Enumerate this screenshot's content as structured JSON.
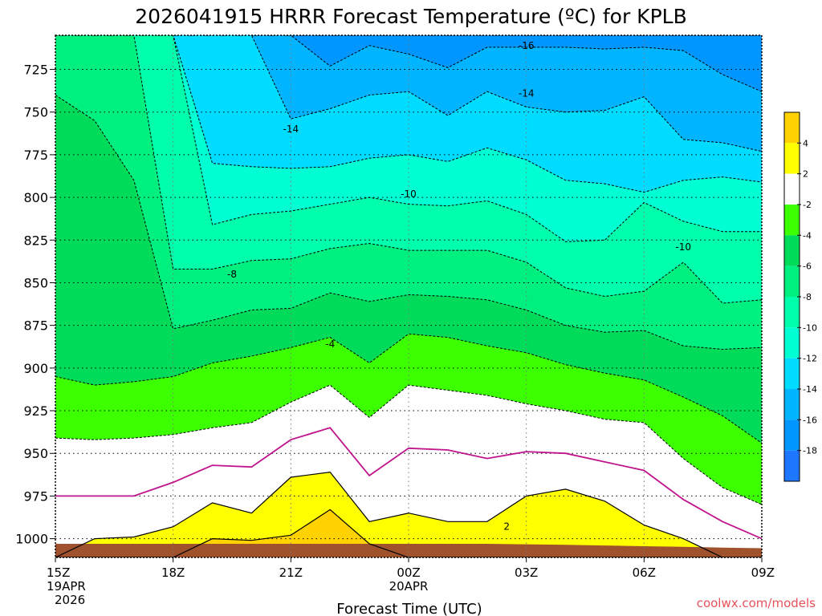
{
  "title": "2026041915 HRRR Forecast Temperature (ºC) for KPLB",
  "watermark": "coolwx.com/models",
  "chart_data": {
    "type": "contour-area",
    "title": "2026041915 HRRR Forecast Temperature (ºC) for KPLB",
    "xlabel": "Forecast Time (UTC)",
    "ylabel": "",
    "x_hours": [
      15,
      16,
      17,
      18,
      19,
      20,
      21,
      22,
      23,
      24,
      25,
      26,
      27,
      28,
      29,
      30,
      31,
      32,
      33
    ],
    "x_ticks": [
      {
        "hour": 15,
        "label": "15Z",
        "sub1": "19APR",
        "sub2": "2026"
      },
      {
        "hour": 18,
        "label": "18Z",
        "sub1": "",
        "sub2": ""
      },
      {
        "hour": 21,
        "label": "21Z",
        "sub1": "",
        "sub2": ""
      },
      {
        "hour": 24,
        "label": "00Z",
        "sub1": "20APR",
        "sub2": ""
      },
      {
        "hour": 27,
        "label": "03Z",
        "sub1": "",
        "sub2": ""
      },
      {
        "hour": 30,
        "label": "06Z",
        "sub1": "",
        "sub2": ""
      },
      {
        "hour": 33,
        "label": "09Z",
        "sub1": "",
        "sub2": ""
      }
    ],
    "y_ticks": [
      725,
      750,
      775,
      800,
      825,
      850,
      875,
      900,
      925,
      950,
      975,
      1000
    ],
    "y_range": [
      705,
      1011
    ],
    "levels": [
      -18,
      -16,
      -14,
      -12,
      -10,
      -8,
      -6,
      -4,
      -2,
      2,
      4
    ],
    "colors": [
      "#1e78ff",
      "#0096ff",
      "#00b4ff",
      "#00dcff",
      "#00ffd2",
      "#00ffaa",
      "#00f080",
      "#00dc5a",
      "#3cff00",
      "#ffffff",
      "#ffff00",
      "#ffd200"
    ],
    "colorbar_labels": [
      "4",
      "2",
      "-2",
      "-4",
      "-6",
      "-8",
      "-10",
      "-12",
      "-14",
      "-16",
      "-18"
    ],
    "ground_pressure": [
      1003,
      1003,
      1003,
      1003,
      1003,
      1003,
      1003,
      1003,
      1003,
      1003,
      1003,
      1003,
      1003.3,
      1003.6,
      1004,
      1004.4,
      1004.8,
      1005.2,
      1005.6
    ],
    "isotherms": [
      {
        "t": -18,
        "p": [
          705,
          705,
          705,
          705,
          705,
          705,
          705,
          705,
          705,
          705,
          705,
          705,
          705,
          705,
          705,
          705,
          705,
          705,
          705
        ]
      },
      {
        "t": -16,
        "p": [
          705,
          705,
          705,
          705,
          705,
          705,
          705,
          723,
          711,
          716,
          724,
          712,
          712,
          712,
          713,
          712,
          714,
          728,
          738
        ]
      },
      {
        "t": -14,
        "p": [
          705,
          705,
          705,
          705,
          705,
          705,
          754,
          748,
          740,
          738,
          752,
          738,
          747,
          750,
          749,
          741,
          766,
          768,
          773
        ]
      },
      {
        "t": -12,
        "p": [
          705,
          705,
          705,
          705,
          780,
          782,
          783,
          782,
          777,
          775,
          779,
          771,
          778,
          790,
          792,
          797,
          790,
          788,
          791
        ]
      },
      {
        "t": -10,
        "p": [
          705,
          705,
          705,
          705,
          816,
          810,
          808,
          804,
          800,
          804,
          805,
          802,
          810,
          826,
          825,
          803,
          814,
          820,
          820
        ]
      },
      {
        "t": -8,
        "p": [
          705,
          705,
          705,
          842,
          842,
          837,
          836,
          830,
          827,
          831,
          831,
          831,
          838,
          853,
          858,
          855,
          838,
          862,
          860
        ]
      },
      {
        "t": -6,
        "p": [
          740,
          755,
          790,
          877,
          872,
          866,
          865,
          856,
          861,
          857,
          858,
          860,
          866,
          875,
          879,
          878,
          887,
          889,
          888
        ]
      },
      {
        "t": -4,
        "p": [
          905,
          910,
          908,
          905,
          897,
          893,
          888,
          882,
          897,
          880,
          882,
          887,
          891,
          898,
          903,
          907,
          917,
          928,
          944
        ]
      },
      {
        "t": -2,
        "p": [
          941,
          942,
          941,
          939,
          935,
          932,
          920,
          910,
          929,
          910,
          913,
          916,
          921,
          925,
          930,
          932,
          953,
          970,
          980
        ]
      },
      {
        "t": 2,
        "p": [
          1011,
          1000,
          999,
          993,
          979,
          985,
          964,
          961,
          990,
          985,
          990,
          990,
          975,
          971,
          978,
          992,
          1000,
          1011,
          1011
        ]
      },
      {
        "t": 4,
        "p": [
          1011,
          1011,
          1011,
          1011,
          1000,
          1001,
          998,
          983,
          1003,
          1011,
          1011,
          1011,
          1011,
          1011,
          1011,
          1011,
          1011,
          1011,
          1011
        ]
      }
    ],
    "zero_line": {
      "t": 0,
      "p": [
        975,
        975,
        975,
        967,
        957,
        958,
        942,
        935,
        963,
        947,
        948,
        953,
        949,
        950,
        955,
        960,
        977,
        990,
        1000
      ]
    },
    "contour_labels": [
      {
        "text": "-16",
        "hour": 27.0,
        "p": 711
      },
      {
        "text": "-14",
        "hour": 27.0,
        "p": 739
      },
      {
        "text": "-14",
        "hour": 21.0,
        "p": 760
      },
      {
        "text": "-10",
        "hour": 24.0,
        "p": 798
      },
      {
        "text": "-10",
        "hour": 31.0,
        "p": 829
      },
      {
        "text": "-8",
        "hour": 19.5,
        "p": 845
      },
      {
        "text": "-4",
        "hour": 22.0,
        "p": 886
      },
      {
        "text": "2",
        "hour": 26.5,
        "p": 993
      }
    ]
  }
}
